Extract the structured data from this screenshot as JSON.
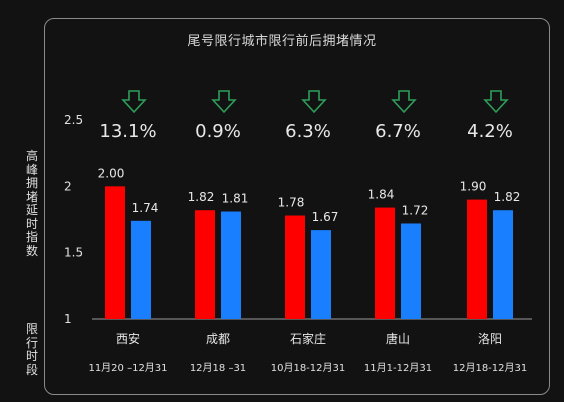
{
  "title": "尾号限行城市限行前后拥堵情况",
  "ylabel": "高峰拥堵延时指数",
  "period_label": "限行时段",
  "colors": {
    "before": "#ff0000",
    "after": "#1a7fff",
    "arrow": "#2e9e5a",
    "background": "#121212"
  },
  "arrow_icon": "down-arrow-icon",
  "chart_data": {
    "type": "bar",
    "categories": [
      "西安",
      "成都",
      "石家庄",
      "唐山",
      "洛阳"
    ],
    "periods": [
      "11月20 –12月31",
      "12月18 –31",
      "10月18-12月31",
      "11月1-12月31",
      "12月18-12月31"
    ],
    "changes": [
      "13.1%",
      "0.9%",
      "6.3%",
      "6.7%",
      "4.2%"
    ],
    "series": [
      {
        "values": [
          2.0,
          1.82,
          1.78,
          1.84,
          1.9
        ],
        "labels": [
          "2.00",
          "1.82",
          "1.78",
          "1.84",
          "1.90"
        ]
      },
      {
        "values": [
          1.74,
          1.81,
          1.67,
          1.72,
          1.82
        ],
        "labels": [
          "1.74",
          "1.81",
          "1.67",
          "1.72",
          "1.82"
        ]
      }
    ],
    "ylim": [
      1,
      2.5
    ],
    "yticks": [
      "1",
      "1.5",
      "2",
      "2.5"
    ],
    "grid": false
  }
}
